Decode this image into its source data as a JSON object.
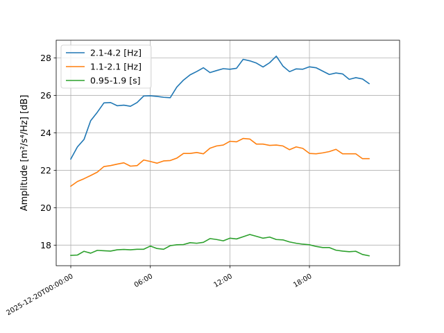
{
  "chart_data": {
    "type": "line",
    "xlabel": "",
    "ylabel": "Amplitude [m²/s⁴/Hz] [dB]",
    "ylim": [
      16.9,
      28.95
    ],
    "xlim": [
      "2025-12-19T22:54:00",
      "2025-12-21T00:48:00"
    ],
    "grid": true,
    "legend_position": "top-left",
    "x_ticks": [
      {
        "value": "2025-12-20T00:00:00",
        "label": "2025-12-20T00:00:00"
      },
      {
        "value": "2025-12-20T06:00:00",
        "label": "06:00"
      },
      {
        "value": "2025-12-20T12:00:00",
        "label": "12:00"
      },
      {
        "value": "2025-12-20T18:00:00",
        "label": "18:00"
      }
    ],
    "y_ticks": [
      {
        "value": 18,
        "label": "18"
      },
      {
        "value": 20,
        "label": "20"
      },
      {
        "value": 22,
        "label": "22"
      },
      {
        "value": 24,
        "label": "24"
      },
      {
        "value": 26,
        "label": "26"
      },
      {
        "value": 28,
        "label": "28"
      }
    ],
    "x": [
      "2025-12-20T00:00:00",
      "2025-12-20T00:30:00",
      "2025-12-20T01:00:00",
      "2025-12-20T01:30:00",
      "2025-12-20T02:00:00",
      "2025-12-20T02:30:00",
      "2025-12-20T03:00:00",
      "2025-12-20T03:30:00",
      "2025-12-20T04:00:00",
      "2025-12-20T04:30:00",
      "2025-12-20T05:00:00",
      "2025-12-20T05:30:00",
      "2025-12-20T06:00:00",
      "2025-12-20T06:30:00",
      "2025-12-20T07:00:00",
      "2025-12-20T07:30:00",
      "2025-12-20T08:00:00",
      "2025-12-20T08:30:00",
      "2025-12-20T09:00:00",
      "2025-12-20T09:30:00",
      "2025-12-20T10:00:00",
      "2025-12-20T10:30:00",
      "2025-12-20T11:00:00",
      "2025-12-20T11:30:00",
      "2025-12-20T12:00:00",
      "2025-12-20T12:30:00",
      "2025-12-20T13:00:00",
      "2025-12-20T13:30:00",
      "2025-12-20T14:00:00",
      "2025-12-20T14:30:00",
      "2025-12-20T15:00:00",
      "2025-12-20T15:30:00",
      "2025-12-20T16:00:00",
      "2025-12-20T16:30:00",
      "2025-12-20T17:00:00",
      "2025-12-20T17:30:00",
      "2025-12-20T18:00:00",
      "2025-12-20T18:30:00",
      "2025-12-20T19:00:00",
      "2025-12-20T19:30:00",
      "2025-12-20T20:00:00",
      "2025-12-20T20:30:00",
      "2025-12-20T21:00:00",
      "2025-12-20T21:30:00",
      "2025-12-20T22:00:00",
      "2025-12-20T22:30:00"
    ],
    "series": [
      {
        "name": "2.1-4.2 [Hz]",
        "color": "#1f77b4",
        "values": [
          22.6,
          23.25,
          23.65,
          24.65,
          25.1,
          25.6,
          25.62,
          25.45,
          25.48,
          25.42,
          25.62,
          25.97,
          25.98,
          25.95,
          25.9,
          25.88,
          26.45,
          26.82,
          27.1,
          27.28,
          27.48,
          27.22,
          27.33,
          27.43,
          27.4,
          27.45,
          27.93,
          27.85,
          27.73,
          27.52,
          27.75,
          28.1,
          27.57,
          27.27,
          27.42,
          27.4,
          27.53,
          27.48,
          27.3,
          27.12,
          27.2,
          27.15,
          26.86,
          26.95,
          26.88,
          26.63
        ]
      },
      {
        "name": "1.1-2.1 [Hz]",
        "color": "#ff7f0e",
        "values": [
          21.15,
          21.4,
          21.55,
          21.72,
          21.9,
          22.2,
          22.25,
          22.33,
          22.4,
          22.22,
          22.25,
          22.55,
          22.47,
          22.38,
          22.5,
          22.52,
          22.65,
          22.9,
          22.9,
          22.95,
          22.88,
          23.18,
          23.3,
          23.35,
          23.55,
          23.52,
          23.7,
          23.67,
          23.4,
          23.4,
          23.33,
          23.35,
          23.3,
          23.1,
          23.25,
          23.17,
          22.9,
          22.88,
          22.93,
          23.0,
          23.12,
          22.88,
          22.88,
          22.88,
          22.62,
          22.62
        ]
      },
      {
        "name": "0.95-1.9 [s]",
        "color": "#2ca02c",
        "values": [
          17.45,
          17.47,
          17.67,
          17.57,
          17.72,
          17.7,
          17.68,
          17.75,
          17.77,
          17.75,
          17.78,
          17.78,
          17.95,
          17.82,
          17.78,
          17.97,
          18.02,
          18.03,
          18.13,
          18.1,
          18.15,
          18.35,
          18.3,
          18.23,
          18.37,
          18.33,
          18.45,
          18.57,
          18.47,
          18.37,
          18.43,
          18.3,
          18.28,
          18.17,
          18.1,
          18.05,
          18.02,
          17.93,
          17.87,
          17.87,
          17.73,
          17.68,
          17.65,
          17.67,
          17.5,
          17.43
        ]
      }
    ]
  }
}
